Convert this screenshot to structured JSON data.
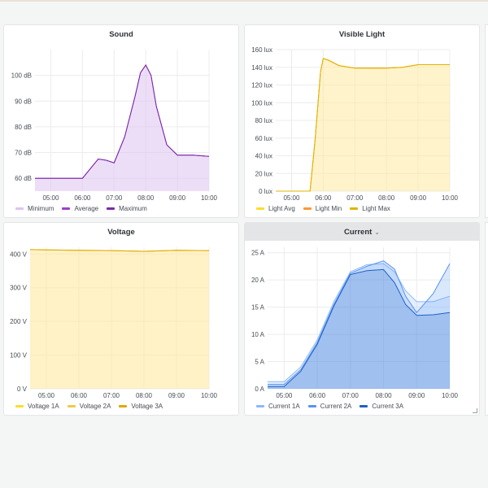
{
  "colors": {
    "background": "#f4f5f5",
    "panel": "#ffffff",
    "grid": "#ececec",
    "axis_text": "#464c54"
  },
  "panels": [
    {
      "id": "sound",
      "title": "Sound",
      "chart_data": {
        "type": "area",
        "title": "Sound",
        "x_ticks": [
          "05:00",
          "06:00",
          "07:00",
          "08:00",
          "09:00",
          "10:00"
        ],
        "y_ticks": [
          "60 dB",
          "70 dB",
          "80 dB",
          "90 dB",
          "100 dB"
        ],
        "ylim": [
          55,
          110
        ],
        "x": [
          "04:30",
          "05:00",
          "05:30",
          "06:00",
          "06:20",
          "06:30",
          "06:45",
          "07:00",
          "07:20",
          "07:40",
          "07:50",
          "08:00",
          "08:10",
          "08:20",
          "08:40",
          "09:00",
          "09:30",
          "10:00"
        ],
        "series": [
          {
            "name": "Minimum",
            "color": "#dec2f2",
            "values": [
              60,
              60,
              60,
              60,
              65,
              67.5,
              67,
              66,
              76,
              92,
              101,
              104,
              100,
              88,
              73,
              69,
              69,
              68.5
            ]
          },
          {
            "name": "Average",
            "color": "#9e3fc9",
            "values": [
              60,
              60,
              60,
              60,
              65,
              67.5,
              67,
              66,
              76,
              92,
              101,
              104,
              100,
              88,
              73,
              69,
              69,
              68.5
            ]
          },
          {
            "name": "Maximum",
            "color": "#7b2aa6",
            "values": [
              60,
              60,
              60,
              60,
              65,
              67.5,
              67,
              66,
              76,
              92,
              101,
              104,
              100,
              88,
              73,
              69,
              69,
              68.5
            ]
          }
        ]
      }
    },
    {
      "id": "visible-light",
      "title": "Visible Light",
      "chart_data": {
        "type": "area",
        "title": "Visible Light",
        "x_ticks": [
          "05:00",
          "06:00",
          "07:00",
          "08:00",
          "09:00",
          "10:00"
        ],
        "y_ticks": [
          "0 lux",
          "20 lux",
          "40 lux",
          "60 lux",
          "80 lux",
          "100 lux",
          "120 lux",
          "140 lux",
          "160 lux"
        ],
        "ylim": [
          0,
          160
        ],
        "x": [
          "04:30",
          "05:00",
          "05:20",
          "05:35",
          "05:45",
          "05:55",
          "06:00",
          "06:10",
          "06:30",
          "07:00",
          "07:30",
          "08:00",
          "08:30",
          "09:00",
          "09:30",
          "10:00"
        ],
        "series": [
          {
            "name": "Light Avg",
            "color": "#fade2a",
            "values": [
              0,
              0,
              0,
              0,
              60,
              135,
              150,
              148,
              142,
              139,
              139,
              139,
              140,
              143,
              143,
              143
            ]
          },
          {
            "name": "Light Min",
            "color": "#ff9830",
            "values": [
              0,
              0,
              0,
              0,
              60,
              135,
              150,
              148,
              142,
              139,
              139,
              139,
              140,
              143,
              143,
              143
            ]
          },
          {
            "name": "Light Max",
            "color": "#e0b400",
            "values": [
              0,
              0,
              0,
              0,
              60,
              135,
              150,
              148,
              142,
              139,
              139,
              139,
              140,
              143,
              143,
              143
            ]
          }
        ]
      }
    },
    {
      "id": "voltage",
      "title": "Voltage",
      "chart_data": {
        "type": "area",
        "title": "Voltage",
        "x_ticks": [
          "05:00",
          "06:00",
          "07:00",
          "08:00",
          "09:00",
          "10:00"
        ],
        "y_ticks": [
          "0 V",
          "100 V",
          "200 V",
          "300 V",
          "400 V"
        ],
        "ylim": [
          0,
          420
        ],
        "x": [
          "04:30",
          "05:00",
          "06:00",
          "07:00",
          "08:00",
          "09:00",
          "10:00"
        ],
        "series": [
          {
            "name": "Voltage 1A",
            "color": "#fade2a",
            "values": [
              413,
              412,
              411,
              410,
              408,
              411,
              410
            ]
          },
          {
            "name": "Voltage 2A",
            "color": "#f2c94c",
            "values": [
              413,
              412,
              411,
              410,
              408,
              411,
              410
            ]
          },
          {
            "name": "Voltage 3A",
            "color": "#e0a800",
            "values": [
              413,
              412,
              411,
              410,
              408,
              411,
              410
            ]
          }
        ]
      }
    },
    {
      "id": "current",
      "title": "Current",
      "title_dropdown": "⌄",
      "chart_data": {
        "type": "area",
        "title": "Current",
        "x_ticks": [
          "05:00",
          "06:00",
          "07:00",
          "08:00",
          "09:00",
          "10:00"
        ],
        "y_ticks": [
          "0 A",
          "5 A",
          "10 A",
          "15 A",
          "20 A",
          "25 A"
        ],
        "ylim": [
          0,
          26
        ],
        "x": [
          "04:30",
          "05:00",
          "05:30",
          "06:00",
          "06:30",
          "07:00",
          "07:30",
          "08:00",
          "08:20",
          "08:40",
          "09:00",
          "09:30",
          "10:00"
        ],
        "series": [
          {
            "name": "Current 1A",
            "color": "#8ab8ff",
            "values": [
              1.3,
              1.3,
              4,
              9,
              16,
              21.5,
              22.8,
              23,
              21.5,
              18,
              16,
              16,
              17
            ]
          },
          {
            "name": "Current 2A",
            "color": "#5794f2",
            "values": [
              0.8,
              0.8,
              3.5,
              8.5,
              15.5,
              21.2,
              22.5,
              23.5,
              22,
              17,
              14,
              17.5,
              23
            ]
          },
          {
            "name": "Current 3A",
            "color": "#1f60c4",
            "values": [
              0.4,
              0.4,
              3.2,
              8.2,
              15.2,
              21,
              21.7,
              21.9,
              19.5,
              15.5,
              13.5,
              13.6,
              14
            ]
          }
        ]
      }
    }
  ]
}
